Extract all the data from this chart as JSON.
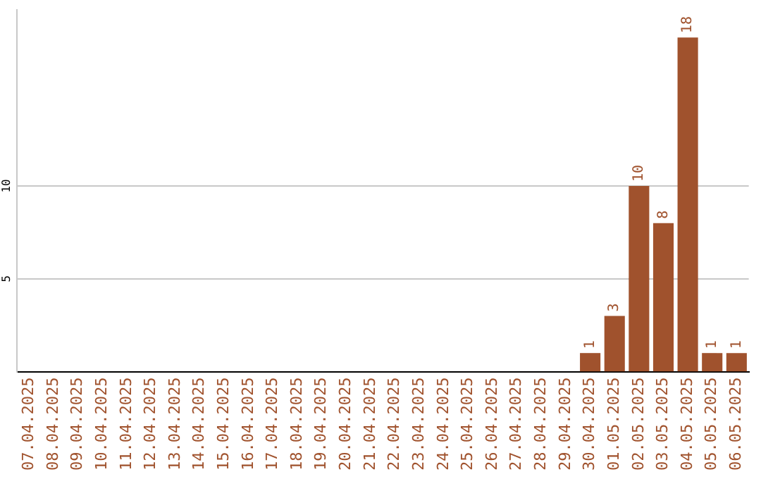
{
  "chart_data": {
    "type": "bar",
    "categories": [
      "07.04.2025",
      "08.04.2025",
      "09.04.2025",
      "10.04.2025",
      "11.04.2025",
      "12.04.2025",
      "13.04.2025",
      "14.04.2025",
      "15.04.2025",
      "16.04.2025",
      "17.04.2025",
      "18.04.2025",
      "19.04.2025",
      "20.04.2025",
      "21.04.2025",
      "22.04.2025",
      "23.04.2025",
      "24.04.2025",
      "25.04.2025",
      "26.04.2025",
      "27.04.2025",
      "28.04.2025",
      "29.04.2025",
      "30.04.2025",
      "01.05.2025",
      "02.05.2025",
      "03.05.2025",
      "04.05.2025",
      "05.05.2025",
      "06.05.2025"
    ],
    "values": [
      0,
      0,
      0,
      0,
      0,
      0,
      0,
      0,
      0,
      0,
      0,
      0,
      0,
      0,
      0,
      0,
      0,
      0,
      0,
      0,
      0,
      0,
      0,
      1,
      3,
      10,
      8,
      18,
      1,
      1
    ],
    "value_labels": [
      null,
      null,
      null,
      null,
      null,
      null,
      null,
      null,
      null,
      null,
      null,
      null,
      null,
      null,
      null,
      null,
      null,
      null,
      null,
      null,
      null,
      null,
      null,
      "1",
      "3",
      "10",
      "8",
      "18",
      "1",
      "1"
    ],
    "color": "#a0522d",
    "ylim": [
      0,
      19.5
    ],
    "yticks": [
      5,
      10
    ],
    "grid": "y",
    "legend": false
  }
}
